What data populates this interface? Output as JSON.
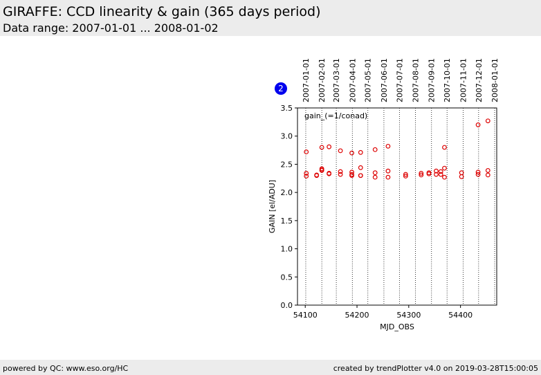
{
  "header": {
    "title": "GIRAFFE: CCD linearity & gain (365 days period)",
    "subtitle": "Data range: 2007-01-01 ... 2008-01-02"
  },
  "footer": {
    "left": "powered by QC: www.eso.org/HC",
    "right": "created by trendPlotter v4.0 on 2019-03-28T15:00:05"
  },
  "badge": {
    "text": "2",
    "color": "#0000ee"
  },
  "chart_data": {
    "type": "scatter",
    "xlabel": "MJD_OBS",
    "ylabel": "GAIN [el/ADU]",
    "annotation": "gain_(=1/conad)",
    "xlim": [
      54085,
      54470
    ],
    "ylim": [
      0.0,
      3.5
    ],
    "xticks": [
      54100,
      54200,
      54300,
      54400
    ],
    "xtick_labels": [
      "54100",
      "54200",
      "54300",
      "54400"
    ],
    "yticks": [
      0.0,
      0.5,
      1.0,
      1.5,
      2.0,
      2.5,
      3.0,
      3.5
    ],
    "ytick_labels": [
      "0.0",
      "0.5",
      "1.0",
      "1.5",
      "2.0",
      "2.5",
      "3.0",
      "3.5"
    ],
    "grid": false,
    "marker_color": "#dd0000",
    "date_axis": {
      "labels": [
        "2007-01-01",
        "2007-02-01",
        "2007-03-01",
        "2007-04-01",
        "2007-05-01",
        "2007-06-01",
        "2007-07-01",
        "2007-08-01",
        "2007-09-01",
        "2007-10-01",
        "2007-11-01",
        "2007-12-01",
        "2008-01-01"
      ],
      "mjd": [
        54101,
        54132,
        54160,
        54191,
        54221,
        54252,
        54282,
        54313,
        54344,
        54374,
        54405,
        54435,
        54466
      ]
    },
    "series": [
      {
        "x": [
          54102,
          54102,
          54102,
          54122,
          54122,
          54132,
          54132,
          54132,
          54132,
          54146,
          54146,
          54146,
          54168,
          54168,
          54168,
          54190,
          54190,
          54190,
          54190,
          54207,
          54207,
          54207,
          54207,
          54235,
          54235,
          54235,
          54260,
          54260,
          54260,
          54294,
          54294,
          54324,
          54324,
          54339,
          54339,
          54353,
          54353,
          54362,
          54362,
          54369,
          54369,
          54369,
          54402,
          54402,
          54434,
          54434,
          54434,
          54453,
          54453,
          54453
        ],
        "y": [
          2.72,
          2.34,
          2.29,
          2.31,
          2.3,
          2.8,
          2.42,
          2.4,
          2.39,
          2.81,
          2.34,
          2.33,
          2.74,
          2.37,
          2.32,
          2.7,
          2.36,
          2.32,
          2.3,
          2.71,
          2.44,
          2.3,
          2.3,
          2.76,
          2.35,
          2.27,
          2.82,
          2.38,
          2.27,
          2.32,
          2.29,
          2.34,
          2.31,
          2.35,
          2.33,
          2.38,
          2.32,
          2.37,
          2.32,
          2.8,
          2.43,
          2.27,
          2.35,
          2.28,
          3.2,
          2.36,
          2.32,
          3.27,
          2.39,
          2.31
        ]
      }
    ]
  }
}
